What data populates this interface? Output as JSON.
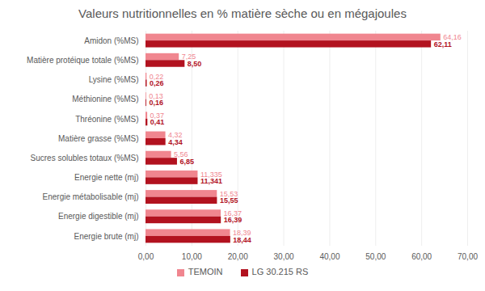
{
  "chart_data": {
    "type": "bar",
    "orientation": "horizontal",
    "title": "Valeurs nutritionnelles en % matière sèche ou en mégajoules",
    "categories": [
      "Amidon (%MS)",
      "Matière protéique totale (%MS)",
      "Lysine (%MS)",
      "Méthionine (%MS)",
      "Thréonine (%MS)",
      "Matière grasse (%MS)",
      "Sucres solubles totaux (%MS)",
      "Energie nette (mj)",
      "Energie métabolisable (mj)",
      "Energie digestible (mj)",
      "Energie brute (mj)"
    ],
    "series": [
      {
        "name": "TEMOIN",
        "color": "#f0868f",
        "values": [
          64.16,
          7.25,
          0.22,
          0.13,
          0.37,
          4.32,
          5.56,
          11.335,
          15.53,
          16.37,
          18.39
        ],
        "value_labels": [
          "64,16",
          "7,25",
          "0,22",
          "0,13",
          "0,37",
          "4,32",
          "5,56",
          "11,335",
          "15,53",
          "16,37",
          "18,39"
        ]
      },
      {
        "name": "LG 30.215 RS",
        "color": "#b2121f",
        "values": [
          62.11,
          8.5,
          0.26,
          0.16,
          0.41,
          4.34,
          6.85,
          11.341,
          15.55,
          16.39,
          18.44
        ],
        "value_labels": [
          "62,11",
          "8,50",
          "0,26",
          "0,16",
          "0,41",
          "4,34",
          "6,85",
          "11,341",
          "15,55",
          "16,39",
          "18,44"
        ]
      }
    ],
    "xlim": [
      0,
      70
    ],
    "xticks": [
      {
        "value": 0,
        "label": "0,00"
      },
      {
        "value": 10,
        "label": "10,00"
      },
      {
        "value": 20,
        "label": "20,00"
      },
      {
        "value": 30,
        "label": "30,00"
      },
      {
        "value": 40,
        "label": "40,00"
      },
      {
        "value": 50,
        "label": "50,00"
      },
      {
        "value": 60,
        "label": "60,00"
      },
      {
        "value": 70,
        "label": "70,00"
      }
    ],
    "grid": true,
    "data_labels": true,
    "legend": "bottom"
  }
}
